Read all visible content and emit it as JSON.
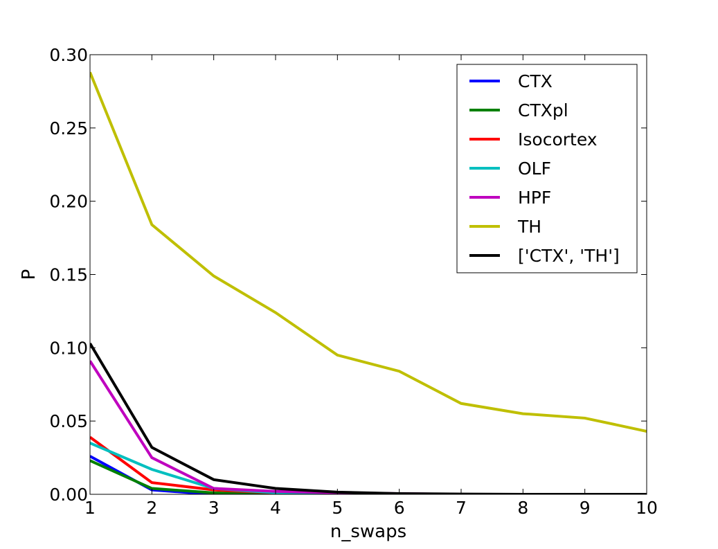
{
  "chart_data": {
    "type": "line",
    "title": "",
    "xlabel": "n_swaps",
    "ylabel": "P",
    "xlim": [
      1,
      10
    ],
    "ylim": [
      0.0,
      0.3
    ],
    "xticks": [
      1,
      2,
      3,
      4,
      5,
      6,
      7,
      8,
      9,
      10
    ],
    "yticks": [
      "0.00",
      "0.05",
      "0.10",
      "0.15",
      "0.20",
      "0.25",
      "0.30"
    ],
    "grid": false,
    "legend_position": "top-right",
    "x": [
      1,
      2,
      3,
      4,
      5,
      6,
      7,
      8,
      9,
      10
    ],
    "series": [
      {
        "name": "CTX",
        "color": "#0000ff",
        "values": [
          0.026,
          0.003,
          0.0,
          0.0,
          0.0,
          0.0,
          0.0,
          0.0,
          0.0,
          0.0
        ]
      },
      {
        "name": "CTXpl",
        "color": "#008000",
        "values": [
          0.023,
          0.004,
          0.001,
          0.0,
          0.0,
          0.0,
          0.0,
          0.0,
          0.0,
          0.0
        ]
      },
      {
        "name": "Isocortex",
        "color": "#ff0000",
        "values": [
          0.039,
          0.008,
          0.003,
          0.001,
          0.0,
          0.0,
          0.0,
          0.0,
          0.0,
          0.0
        ]
      },
      {
        "name": "OLF",
        "color": "#00bfbf",
        "values": [
          0.035,
          0.017,
          0.004,
          0.001,
          0.0,
          0.0,
          0.0,
          0.0,
          0.0,
          0.0
        ]
      },
      {
        "name": "HPF",
        "color": "#bf00bf",
        "values": [
          0.091,
          0.025,
          0.004,
          0.002,
          0.001,
          0.0005,
          0.0,
          0.0,
          0.0,
          0.0
        ]
      },
      {
        "name": "TH",
        "color": "#bfbf00",
        "values": [
          0.288,
          0.184,
          0.149,
          0.124,
          0.095,
          0.084,
          0.062,
          0.055,
          0.052,
          0.043
        ]
      },
      {
        "name": "['CTX', 'TH']",
        "color": "#000000",
        "values": [
          0.103,
          0.032,
          0.01,
          0.004,
          0.0015,
          0.0005,
          0.0002,
          0.0,
          0.0,
          0.0
        ]
      }
    ]
  }
}
